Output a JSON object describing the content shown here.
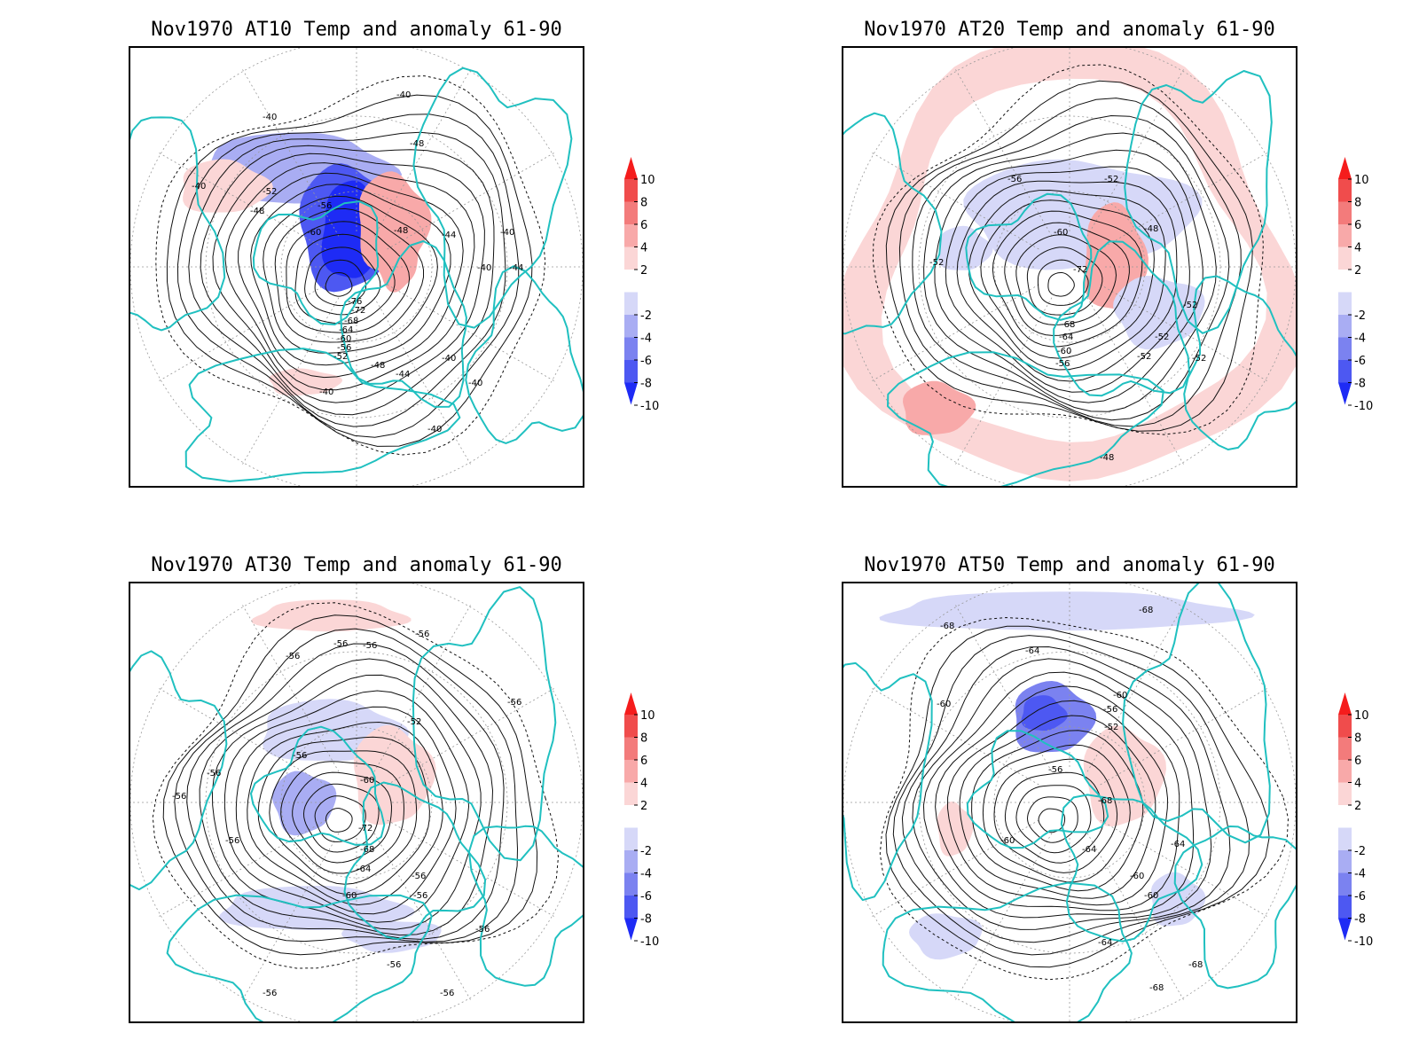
{
  "colors": {
    "coast": "#20c0c0",
    "contour": "#111111",
    "scale": [
      "#1e2bf5",
      "#4d58f2",
      "#7b82f0",
      "#a9adf3",
      "#d6d8f8",
      "#ffffff",
      "#fbd6d6",
      "#f8a9a9",
      "#f37b7b",
      "#f04c4c",
      "#f51c1c"
    ]
  },
  "colorbar": {
    "labels": [
      "10",
      "8",
      "6",
      "4",
      "2",
      "-2",
      "-4",
      "-6",
      "-8",
      "-10"
    ]
  },
  "panels": [
    {
      "id": "at10",
      "title": "Nov1970 AT10 Temp and anomaly 61-90",
      "contour_labels": [
        "-40",
        "-40",
        "-40",
        "-48",
        "-52",
        "-56",
        "-48",
        "-60",
        "-48",
        "-44",
        "-40",
        "-40",
        "-44",
        "-76",
        "-72",
        "-68",
        "-64",
        "-60",
        "-56",
        "-52",
        "-48",
        "-44",
        "-40",
        "-40",
        "-40",
        "-40"
      ]
    },
    {
      "id": "at20",
      "title": "Nov1970 AT20 Temp and anomaly 61-90",
      "contour_labels": [
        "-56",
        "-52",
        "-48",
        "-52",
        "-60",
        "-72",
        "-68",
        "-64",
        "-60",
        "-56",
        "-52",
        "-52",
        "-52",
        "-52",
        "-48"
      ]
    },
    {
      "id": "at30",
      "title": "Nov1970 AT30 Temp and anomaly 61-90",
      "contour_labels": [
        "-56",
        "-56",
        "-56",
        "-56",
        "-56",
        "-52",
        "-60",
        "-56",
        "-56",
        "-56",
        "-56",
        "-72",
        "-68",
        "-64",
        "-60",
        "-56",
        "-56",
        "-56",
        "-56",
        "-56",
        "-56"
      ]
    },
    {
      "id": "at50",
      "title": "Nov1970 AT50 Temp and anomaly 61-90",
      "contour_labels": [
        "-68",
        "-68",
        "-64",
        "-60",
        "-60",
        "-56",
        "-52",
        "-56",
        "-68",
        "-64",
        "-60",
        "-64",
        "-60",
        "-60",
        "-64",
        "-68",
        "-68"
      ]
    }
  ]
}
